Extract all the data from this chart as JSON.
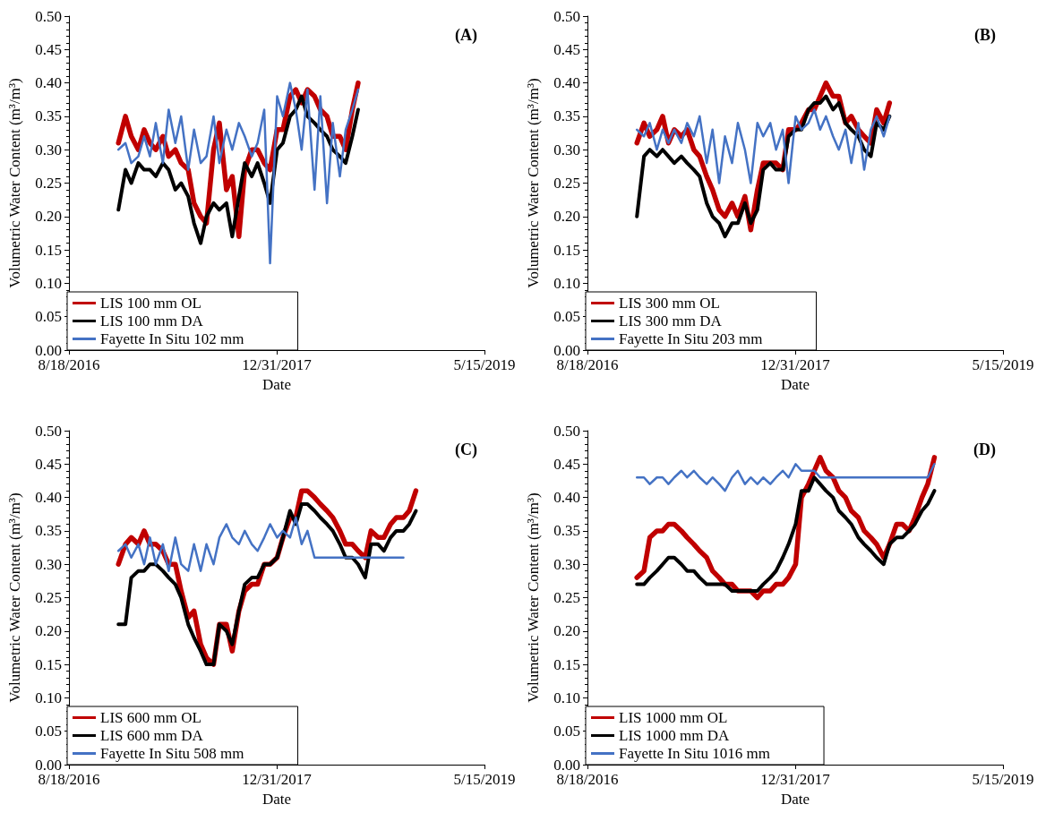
{
  "chart_data": [
    {
      "type": "line",
      "annotations": [
        "(A)"
      ],
      "xlabel": "Date",
      "ylabel": "Volumetric Water Content (m³/m³)",
      "legend": "bottom left",
      "grid": false,
      "marker": "none",
      "line_style": "solid",
      "xlim": [
        "2016-08-18",
        "2019-05-15"
      ],
      "xticks": [
        {
          "value": "2016-08-18",
          "label": "8/18/2016"
        },
        {
          "value": "2017-12-31",
          "label": "12/31/2017"
        },
        {
          "value": "2019-05-15",
          "label": "5/15/2019"
        }
      ],
      "ylim": [
        0,
        0.5
      ],
      "yticks": [
        {
          "value": 0,
          "label": "0.00"
        },
        {
          "value": 0.05,
          "label": "0.05"
        },
        {
          "value": 0.1,
          "label": "0.10"
        },
        {
          "value": 0.15,
          "label": "0.15"
        },
        {
          "value": 0.2,
          "label": "0.20"
        },
        {
          "value": 0.25,
          "label": "0.25"
        },
        {
          "value": 0.3,
          "label": "0.30"
        },
        {
          "value": 0.35,
          "label": "0.35"
        },
        {
          "value": 0.4,
          "label": "0.40"
        },
        {
          "value": 0.45,
          "label": "0.45"
        },
        {
          "value": 0.5,
          "label": "0.50"
        }
      ],
      "x": [
        "2016-12-15",
        "2017-01-01",
        "2017-01-15",
        "2017-02-01",
        "2017-02-15",
        "2017-03-01",
        "2017-03-15",
        "2017-04-01",
        "2017-04-15",
        "2017-05-01",
        "2017-05-15",
        "2017-06-01",
        "2017-06-15",
        "2017-07-01",
        "2017-07-15",
        "2017-08-01",
        "2017-08-15",
        "2017-09-01",
        "2017-09-15",
        "2017-10-01",
        "2017-10-15",
        "2017-11-01",
        "2017-11-15",
        "2017-12-01",
        "2017-12-15",
        "2018-01-01",
        "2018-01-15",
        "2018-02-01",
        "2018-02-15",
        "2018-03-01",
        "2018-03-15",
        "2018-04-01",
        "2018-04-15",
        "2018-05-01",
        "2018-05-15",
        "2018-06-01",
        "2018-06-15",
        "2018-07-01",
        "2018-07-15"
      ],
      "series": [
        {
          "name": "LIS 100 mm OL",
          "color": "#c00000",
          "values": [
            0.31,
            0.35,
            0.32,
            0.3,
            0.33,
            0.31,
            0.3,
            0.32,
            0.29,
            0.3,
            0.28,
            0.27,
            0.22,
            0.2,
            0.19,
            0.3,
            0.34,
            0.24,
            0.26,
            0.17,
            0.27,
            0.3,
            0.3,
            0.28,
            0.27,
            0.33,
            0.33,
            0.38,
            0.39,
            0.37,
            0.39,
            0.38,
            0.36,
            0.35,
            0.32,
            0.32,
            0.3,
            0.36,
            0.4
          ]
        },
        {
          "name": "LIS 100 mm DA",
          "color": "#000000",
          "values": [
            0.21,
            0.27,
            0.25,
            0.28,
            0.27,
            0.27,
            0.26,
            0.28,
            0.27,
            0.24,
            0.25,
            0.23,
            0.19,
            0.16,
            0.2,
            0.22,
            0.21,
            0.22,
            0.17,
            0.23,
            0.28,
            0.26,
            0.28,
            0.25,
            0.22,
            0.3,
            0.31,
            0.35,
            0.36,
            0.38,
            0.35,
            0.34,
            0.33,
            0.32,
            0.3,
            0.29,
            0.28,
            0.32,
            0.36
          ]
        },
        {
          "name": "Fayette In Situ 102 mm",
          "color": "#4472c4",
          "values": [
            0.3,
            0.31,
            0.28,
            0.29,
            0.32,
            0.29,
            0.34,
            0.28,
            0.36,
            0.31,
            0.35,
            0.27,
            0.33,
            0.28,
            0.29,
            0.35,
            0.28,
            0.33,
            0.3,
            0.34,
            0.32,
            0.29,
            0.31,
            0.36,
            0.13,
            0.38,
            0.35,
            0.4,
            0.36,
            0.3,
            0.39,
            0.24,
            0.38,
            0.22,
            0.34,
            0.26,
            0.33,
            0.36,
            0.39
          ]
        }
      ]
    },
    {
      "type": "line",
      "annotations": [
        "(B)"
      ],
      "xlabel": "Date",
      "ylabel": "Volumetric Water Content (m³/m³)",
      "legend": "bottom left",
      "grid": false,
      "marker": "none",
      "line_style": "solid",
      "xlim": [
        "2016-08-18",
        "2019-05-15"
      ],
      "xticks": [
        {
          "value": "2016-08-18",
          "label": "8/18/2016"
        },
        {
          "value": "2017-12-31",
          "label": "12/31/2017"
        },
        {
          "value": "2019-05-15",
          "label": "5/15/2019"
        }
      ],
      "ylim": [
        0,
        0.5
      ],
      "yticks": [
        {
          "value": 0,
          "label": "0.00"
        },
        {
          "value": 0.05,
          "label": "0.05"
        },
        {
          "value": 0.1,
          "label": "0.10"
        },
        {
          "value": 0.15,
          "label": "0.15"
        },
        {
          "value": 0.2,
          "label": "0.20"
        },
        {
          "value": 0.25,
          "label": "0.25"
        },
        {
          "value": 0.3,
          "label": "0.30"
        },
        {
          "value": 0.35,
          "label": "0.35"
        },
        {
          "value": 0.4,
          "label": "0.40"
        },
        {
          "value": 0.45,
          "label": "0.45"
        },
        {
          "value": 0.5,
          "label": "0.50"
        }
      ],
      "x": [
        "2016-12-15",
        "2017-01-01",
        "2017-01-15",
        "2017-02-01",
        "2017-02-15",
        "2017-03-01",
        "2017-03-15",
        "2017-04-01",
        "2017-04-15",
        "2017-05-01",
        "2017-05-15",
        "2017-06-01",
        "2017-06-15",
        "2017-07-01",
        "2017-07-15",
        "2017-08-01",
        "2017-08-15",
        "2017-09-01",
        "2017-09-15",
        "2017-10-01",
        "2017-10-15",
        "2017-11-01",
        "2017-11-15",
        "2017-12-01",
        "2017-12-15",
        "2018-01-01",
        "2018-01-15",
        "2018-02-01",
        "2018-02-15",
        "2018-03-01",
        "2018-03-15",
        "2018-04-01",
        "2018-04-15",
        "2018-05-01",
        "2018-05-15",
        "2018-06-01",
        "2018-06-15",
        "2018-07-01",
        "2018-07-15",
        "2018-08-01",
        "2018-08-15"
      ],
      "series": [
        {
          "name": "LIS 300 mm OL",
          "color": "#c00000",
          "values": [
            0.31,
            0.34,
            0.32,
            0.33,
            0.35,
            0.31,
            0.33,
            0.32,
            0.33,
            0.3,
            0.29,
            0.26,
            0.24,
            0.21,
            0.2,
            0.22,
            0.2,
            0.23,
            0.18,
            0.24,
            0.28,
            0.28,
            0.28,
            0.27,
            0.33,
            0.33,
            0.34,
            0.36,
            0.36,
            0.38,
            0.4,
            0.38,
            0.38,
            0.34,
            0.35,
            0.33,
            0.32,
            0.31,
            0.36,
            0.34,
            0.37
          ]
        },
        {
          "name": "LIS 300 mm DA",
          "color": "#000000",
          "values": [
            0.2,
            0.29,
            0.3,
            0.29,
            0.3,
            0.29,
            0.28,
            0.29,
            0.28,
            0.27,
            0.26,
            0.22,
            0.2,
            0.19,
            0.17,
            0.19,
            0.19,
            0.22,
            0.19,
            0.21,
            0.27,
            0.28,
            0.27,
            0.27,
            0.32,
            0.33,
            0.33,
            0.36,
            0.37,
            0.37,
            0.38,
            0.36,
            0.37,
            0.34,
            0.33,
            0.32,
            0.3,
            0.29,
            0.34,
            0.33,
            0.35
          ]
        },
        {
          "name": "Fayette In Situ 203 mm",
          "color": "#4472c4",
          "values": [
            0.33,
            0.32,
            0.34,
            0.3,
            0.33,
            0.31,
            0.33,
            0.31,
            0.34,
            0.32,
            0.35,
            0.28,
            0.33,
            0.25,
            0.32,
            0.28,
            0.34,
            0.3,
            0.25,
            0.34,
            0.32,
            0.34,
            0.3,
            0.33,
            0.25,
            0.35,
            0.33,
            0.34,
            0.36,
            0.33,
            0.35,
            0.32,
            0.3,
            0.33,
            0.28,
            0.34,
            0.27,
            0.33,
            0.35,
            0.32,
            0.35
          ]
        }
      ]
    },
    {
      "type": "line",
      "annotations": [
        "(C)"
      ],
      "xlabel": "Date",
      "ylabel": "Volumetric Water Content (m³/m³)",
      "legend": "bottom left",
      "grid": false,
      "marker": "none",
      "line_style": "solid",
      "xlim": [
        "2016-08-18",
        "2019-05-15"
      ],
      "xticks": [
        {
          "value": "2016-08-18",
          "label": "8/18/2016"
        },
        {
          "value": "2017-12-31",
          "label": "12/31/2017"
        },
        {
          "value": "2019-05-15",
          "label": "5/15/2019"
        }
      ],
      "ylim": [
        0,
        0.5
      ],
      "yticks": [
        {
          "value": 0,
          "label": "0.00"
        },
        {
          "value": 0.05,
          "label": "0.05"
        },
        {
          "value": 0.1,
          "label": "0.10"
        },
        {
          "value": 0.15,
          "label": "0.15"
        },
        {
          "value": 0.2,
          "label": "0.20"
        },
        {
          "value": 0.25,
          "label": "0.25"
        },
        {
          "value": 0.3,
          "label": "0.30"
        },
        {
          "value": 0.35,
          "label": "0.35"
        },
        {
          "value": 0.4,
          "label": "0.40"
        },
        {
          "value": 0.45,
          "label": "0.45"
        },
        {
          "value": 0.5,
          "label": "0.50"
        }
      ],
      "x": [
        "2016-12-15",
        "2017-01-01",
        "2017-01-15",
        "2017-02-01",
        "2017-02-15",
        "2017-03-01",
        "2017-03-15",
        "2017-04-01",
        "2017-04-15",
        "2017-05-01",
        "2017-05-15",
        "2017-06-01",
        "2017-06-15",
        "2017-07-01",
        "2017-07-15",
        "2017-08-01",
        "2017-08-15",
        "2017-09-01",
        "2017-09-15",
        "2017-10-01",
        "2017-10-15",
        "2017-11-01",
        "2017-11-15",
        "2017-12-01",
        "2017-12-15",
        "2018-01-01",
        "2018-01-15",
        "2018-02-01",
        "2018-02-15",
        "2018-03-01",
        "2018-03-15",
        "2018-04-01",
        "2018-04-15",
        "2018-05-01",
        "2018-05-15",
        "2018-06-01",
        "2018-06-15",
        "2018-07-01",
        "2018-07-15",
        "2018-08-01",
        "2018-08-15",
        "2018-09-01",
        "2018-09-15",
        "2018-10-01",
        "2018-10-15",
        "2018-11-01",
        "2018-11-15",
        "2018-12-01"
      ],
      "series": [
        {
          "name": "LIS 600 mm OL",
          "color": "#c00000",
          "values": [
            0.3,
            0.33,
            0.34,
            0.33,
            0.35,
            0.33,
            0.33,
            0.32,
            0.3,
            0.3,
            0.26,
            0.22,
            0.23,
            0.18,
            0.16,
            0.15,
            0.21,
            0.21,
            0.17,
            0.23,
            0.26,
            0.27,
            0.27,
            0.3,
            0.3,
            0.31,
            0.34,
            0.37,
            0.37,
            0.41,
            0.41,
            0.4,
            0.39,
            0.38,
            0.37,
            0.35,
            0.33,
            0.33,
            0.32,
            0.31,
            0.35,
            0.34,
            0.34,
            0.36,
            0.37,
            0.37,
            0.38,
            0.41
          ]
        },
        {
          "name": "LIS 600 mm DA",
          "color": "#000000",
          "values": [
            0.21,
            0.21,
            0.28,
            0.29,
            0.29,
            0.3,
            0.3,
            0.29,
            0.28,
            0.27,
            0.25,
            0.21,
            0.19,
            0.17,
            0.15,
            0.15,
            0.21,
            0.2,
            0.18,
            0.23,
            0.27,
            0.28,
            0.28,
            0.3,
            0.3,
            0.31,
            0.34,
            0.38,
            0.36,
            0.39,
            0.39,
            0.38,
            0.37,
            0.36,
            0.35,
            0.33,
            0.31,
            0.31,
            0.3,
            0.28,
            0.33,
            0.33,
            0.32,
            0.34,
            0.35,
            0.35,
            0.36,
            0.38
          ]
        },
        {
          "name": "Fayette In Situ 508 mm",
          "color": "#4472c4",
          "values": [
            0.32,
            0.33,
            0.31,
            0.33,
            0.3,
            0.34,
            0.3,
            0.33,
            0.29,
            0.34,
            0.3,
            0.29,
            0.33,
            0.29,
            0.33,
            0.3,
            0.34,
            0.36,
            0.34,
            0.33,
            0.35,
            0.33,
            0.32,
            0.34,
            0.36,
            0.34,
            0.35,
            0.34,
            0.37,
            0.33,
            0.35,
            0.31,
            0.31,
            0.31,
            0.31,
            0.31,
            0.31,
            0.31,
            0.31,
            0.31,
            0.31,
            0.31,
            0.31,
            0.31,
            0.31,
            0.31,
            null,
            null
          ]
        }
      ]
    },
    {
      "type": "line",
      "annotations": [
        "(D)"
      ],
      "xlabel": "Date",
      "ylabel": "Volumetric Water Content (m³/m³)",
      "legend": "bottom left",
      "grid": false,
      "marker": "none",
      "line_style": "solid",
      "xlim": [
        "2016-08-18",
        "2019-05-15"
      ],
      "xticks": [
        {
          "value": "2016-08-18",
          "label": "8/18/2016"
        },
        {
          "value": "2017-12-31",
          "label": "12/31/2017"
        },
        {
          "value": "2019-05-15",
          "label": "5/15/2019"
        }
      ],
      "ylim": [
        0,
        0.5
      ],
      "yticks": [
        {
          "value": 0,
          "label": "0.00"
        },
        {
          "value": 0.05,
          "label": "0.05"
        },
        {
          "value": 0.1,
          "label": "0.10"
        },
        {
          "value": 0.15,
          "label": "0.15"
        },
        {
          "value": 0.2,
          "label": "0.20"
        },
        {
          "value": 0.25,
          "label": "0.25"
        },
        {
          "value": 0.3,
          "label": "0.30"
        },
        {
          "value": 0.35,
          "label": "0.35"
        },
        {
          "value": 0.4,
          "label": "0.40"
        },
        {
          "value": 0.45,
          "label": "0.45"
        },
        {
          "value": 0.5,
          "label": "0.50"
        }
      ],
      "x": [
        "2016-12-15",
        "2017-01-01",
        "2017-01-15",
        "2017-02-01",
        "2017-02-15",
        "2017-03-01",
        "2017-03-15",
        "2017-04-01",
        "2017-04-15",
        "2017-05-01",
        "2017-05-15",
        "2017-06-01",
        "2017-06-15",
        "2017-07-01",
        "2017-07-15",
        "2017-08-01",
        "2017-08-15",
        "2017-09-01",
        "2017-09-15",
        "2017-10-01",
        "2017-10-15",
        "2017-11-01",
        "2017-11-15",
        "2017-12-01",
        "2017-12-15",
        "2018-01-01",
        "2018-01-15",
        "2018-02-01",
        "2018-02-15",
        "2018-03-01",
        "2018-03-15",
        "2018-04-01",
        "2018-04-15",
        "2018-05-01",
        "2018-05-15",
        "2018-06-01",
        "2018-06-15",
        "2018-07-01",
        "2018-07-15",
        "2018-08-01",
        "2018-08-15",
        "2018-09-01",
        "2018-09-15",
        "2018-10-01",
        "2018-10-15",
        "2018-11-01",
        "2018-11-15",
        "2018-12-01"
      ],
      "series": [
        {
          "name": "LIS 1000 mm OL",
          "color": "#c00000",
          "values": [
            0.28,
            0.29,
            0.34,
            0.35,
            0.35,
            0.36,
            0.36,
            0.35,
            0.34,
            0.33,
            0.32,
            0.31,
            0.29,
            0.28,
            0.27,
            0.27,
            0.26,
            0.26,
            0.26,
            0.25,
            0.26,
            0.26,
            0.27,
            0.27,
            0.28,
            0.3,
            0.4,
            0.42,
            0.44,
            0.46,
            0.44,
            0.43,
            0.41,
            0.4,
            0.38,
            0.37,
            0.35,
            0.34,
            0.33,
            0.31,
            0.33,
            0.36,
            0.36,
            0.35,
            0.37,
            0.4,
            0.42,
            0.46
          ]
        },
        {
          "name": "LIS 1000 mm DA",
          "color": "#000000",
          "values": [
            0.27,
            0.27,
            0.28,
            0.29,
            0.3,
            0.31,
            0.31,
            0.3,
            0.29,
            0.29,
            0.28,
            0.27,
            0.27,
            0.27,
            0.27,
            0.26,
            0.26,
            0.26,
            0.26,
            0.26,
            0.27,
            0.28,
            0.29,
            0.31,
            0.33,
            0.36,
            0.41,
            0.41,
            0.43,
            0.42,
            0.41,
            0.4,
            0.38,
            0.37,
            0.36,
            0.34,
            0.33,
            0.32,
            0.31,
            0.3,
            0.33,
            0.34,
            0.34,
            0.35,
            0.36,
            0.38,
            0.39,
            0.41
          ]
        },
        {
          "name": "Fayette In Situ 1016 mm",
          "color": "#4472c4",
          "values": [
            0.43,
            0.43,
            0.42,
            0.43,
            0.43,
            0.42,
            0.43,
            0.44,
            0.43,
            0.44,
            0.43,
            0.42,
            0.43,
            0.42,
            0.41,
            0.43,
            0.44,
            0.42,
            0.43,
            0.42,
            0.43,
            0.42,
            0.43,
            0.44,
            0.43,
            0.45,
            0.44,
            0.44,
            0.44,
            0.43,
            0.43,
            0.43,
            0.43,
            0.43,
            0.43,
            0.43,
            0.43,
            0.43,
            0.43,
            0.43,
            0.43,
            0.43,
            0.43,
            0.43,
            0.43,
            0.43,
            0.43,
            0.45
          ]
        }
      ]
    }
  ]
}
